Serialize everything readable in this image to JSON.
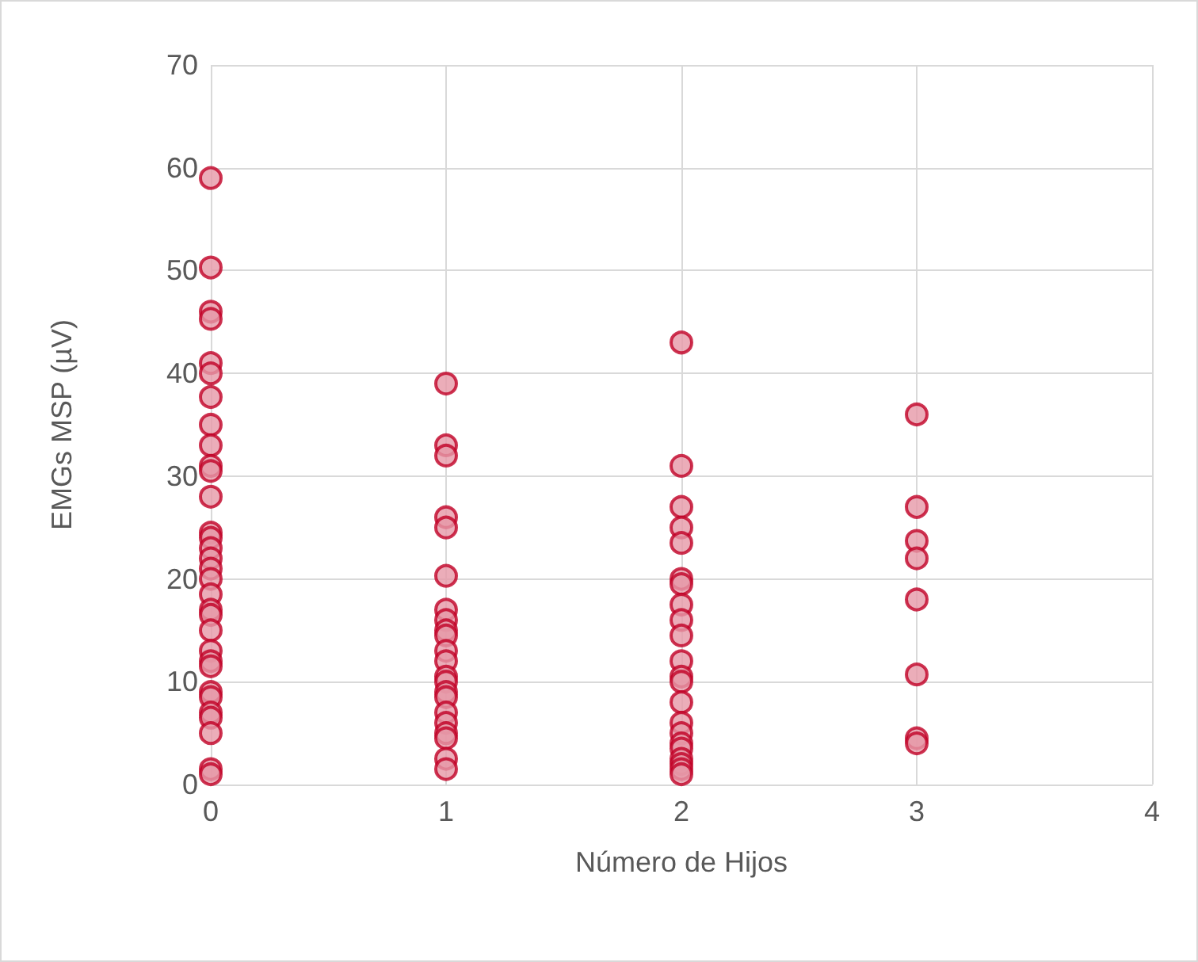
{
  "chart_data": {
    "type": "scatter",
    "xlabel": "Número de Hijos",
    "ylabel": "EMGs MSP (µV)",
    "series": [
      {
        "color": "#c00025",
        "x": [
          0,
          0,
          0,
          0,
          0,
          0,
          0,
          0,
          0,
          0,
          0,
          0,
          0,
          0,
          0,
          0,
          0,
          0,
          0,
          0,
          0,
          0,
          0,
          0,
          0,
          0,
          0,
          0,
          0,
          0,
          0,
          0,
          1,
          1,
          1,
          1,
          1,
          1,
          1,
          1,
          1,
          1,
          1,
          1,
          1,
          1,
          1,
          1,
          1,
          1,
          1,
          1,
          1,
          1,
          2,
          2,
          2,
          2,
          2,
          2,
          2,
          2,
          2,
          2,
          2,
          2,
          2,
          2,
          2,
          2,
          2,
          2,
          2,
          2,
          2,
          2,
          3,
          3,
          3,
          3,
          3,
          3,
          3,
          3
        ],
        "values": [
          59,
          50.3,
          46,
          45.3,
          41,
          40,
          37.7,
          35,
          33,
          31,
          30.5,
          28,
          24.5,
          24,
          23,
          22,
          21,
          20,
          18.5,
          17,
          16.5,
          15,
          13,
          12,
          11.5,
          9,
          8.5,
          7,
          6.5,
          5,
          1.5,
          1,
          39,
          33,
          32,
          26,
          25,
          20.3,
          17,
          16,
          15,
          14.5,
          13,
          12,
          10.5,
          10,
          9,
          8.5,
          7,
          6,
          5,
          4.5,
          2.5,
          1.5,
          43,
          31,
          27,
          25,
          23.5,
          20,
          19.5,
          17.5,
          16,
          14.5,
          12,
          10.5,
          10,
          8,
          6,
          5,
          4,
          3.5,
          2.5,
          2,
          1.5,
          1,
          36,
          27,
          23.7,
          22,
          18,
          10.7,
          4.5,
          4
        ]
      }
    ],
    "xlim": [
      0,
      4
    ],
    "xticks": [
      0,
      1,
      2,
      3,
      4
    ],
    "ylim": [
      0,
      70
    ],
    "yticks": [
      0,
      10,
      20,
      30,
      40,
      50,
      60,
      70
    ],
    "grid": true,
    "marker": "circle"
  }
}
